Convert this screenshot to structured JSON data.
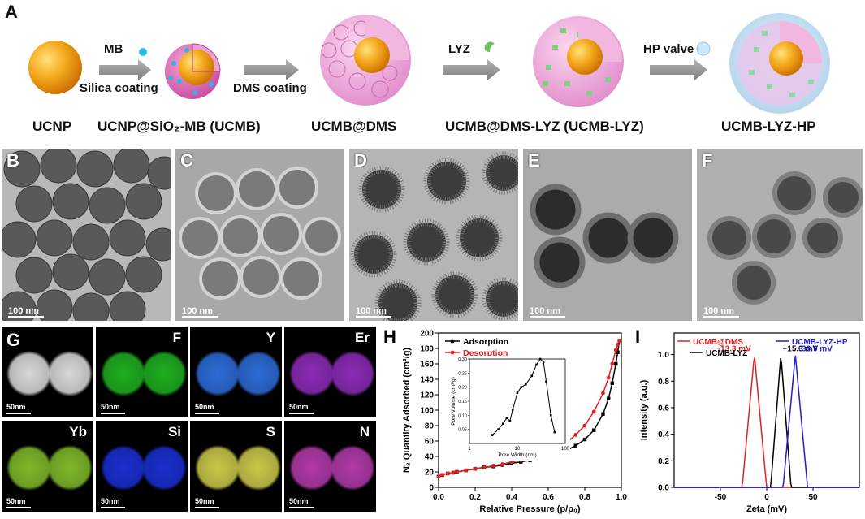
{
  "panels": {
    "A": "A",
    "B": "B",
    "C": "C",
    "D": "D",
    "E": "E",
    "F": "F",
    "G": "G",
    "H": "H",
    "I": "I"
  },
  "schematic": {
    "stages": [
      "UCNP",
      "UCNP@SiO₂-MB (UCMB)",
      "UCMB@DMS",
      "UCMB@DMS-LYZ (UCMB-LYZ)",
      "UCMB-LYZ-HP"
    ],
    "arrows": {
      "arrow1_top": "MB",
      "arrow1_bottom": "Silica coating",
      "arrow2_bottom": "DMS coating",
      "arrow3_top": "LYZ",
      "arrow4_top": "HP valve"
    }
  },
  "tem_scale": "100 nm",
  "eds": {
    "scale": "50nm",
    "maps": [
      {
        "label": "",
        "color": "#d8d8d8"
      },
      {
        "label": "F",
        "color": "#1fae1f"
      },
      {
        "label": "Y",
        "color": "#2c6bd6"
      },
      {
        "label": "Er",
        "color": "#8b2bb5"
      },
      {
        "label": "Yb",
        "color": "#7fb82a"
      },
      {
        "label": "Si",
        "color": "#1a2fd0"
      },
      {
        "label": "S",
        "color": "#c8c84a"
      },
      {
        "label": "N",
        "color": "#b03aa8"
      }
    ]
  },
  "chart_data": [
    {
      "type": "line",
      "panel": "H",
      "xlabel": "Relative Pressure (p/p₀)",
      "ylabel": "N₂ Quantity Adsorbed (cm³/g)",
      "xlim": [
        0.0,
        1.0
      ],
      "ylim": [
        0,
        200
      ],
      "xticks": [
        "0.0",
        "0.2",
        "0.4",
        "0.6",
        "0.8",
        "1.0"
      ],
      "yticks": [
        "0",
        "20",
        "40",
        "60",
        "80",
        "100",
        "120",
        "140",
        "160",
        "180",
        "200"
      ],
      "legend_position": "top-left",
      "series": [
        {
          "name": "Adsorption",
          "color": "#000000",
          "x": [
            0.0,
            0.02,
            0.05,
            0.08,
            0.1,
            0.15,
            0.2,
            0.25,
            0.3,
            0.35,
            0.4,
            0.45,
            0.5,
            0.55,
            0.6,
            0.65,
            0.7,
            0.75,
            0.8,
            0.85,
            0.9,
            0.93,
            0.95,
            0.97,
            0.98,
            0.99
          ],
          "y": [
            14,
            16,
            18,
            19,
            20,
            22,
            24,
            26,
            27,
            29,
            31,
            33,
            35,
            37,
            40,
            43,
            48,
            54,
            62,
            74,
            95,
            115,
            135,
            160,
            175,
            190
          ]
        },
        {
          "name": "Desorption",
          "color": "#e02020",
          "x": [
            0.99,
            0.98,
            0.97,
            0.95,
            0.93,
            0.9,
            0.85,
            0.8,
            0.75,
            0.7,
            0.65,
            0.6,
            0.55,
            0.5,
            0.45,
            0.4,
            0.35,
            0.3,
            0.25,
            0.2,
            0.15,
            0.1,
            0.08,
            0.05,
            0.02,
            0.0
          ],
          "y": [
            190,
            185,
            178,
            160,
            142,
            122,
            98,
            80,
            68,
            58,
            50,
            45,
            41,
            38,
            35,
            33,
            30,
            28,
            26,
            24,
            22,
            20,
            19,
            18,
            16,
            14
          ]
        }
      ],
      "inset": {
        "type": "line",
        "xlabel": "Pore Width (nm)",
        "ylabel": "Pore Volume (cm³/g)",
        "xscale": "log",
        "xlim": [
          1,
          100
        ],
        "ylim": [
          0.0,
          0.3
        ],
        "xticks": [
          "1",
          "10",
          "100"
        ],
        "yticks": [
          "0.05",
          "0.10",
          "0.15",
          "0.20",
          "0.25",
          "0.30"
        ],
        "x": [
          3,
          4,
          5,
          6,
          7,
          8,
          10,
          12,
          15,
          20,
          25,
          30,
          35,
          40,
          50,
          60
        ],
        "y": [
          0.03,
          0.05,
          0.07,
          0.09,
          0.08,
          0.12,
          0.18,
          0.2,
          0.21,
          0.24,
          0.28,
          0.3,
          0.29,
          0.22,
          0.1,
          0.04
        ]
      }
    },
    {
      "type": "line",
      "panel": "I",
      "xlabel": "Zeta (mV)",
      "ylabel": "Intensity (a.u.)",
      "xlim": [
        -100,
        100
      ],
      "ylim": [
        0.0,
        1.0
      ],
      "xticks": [
        "-50",
        "0",
        "50"
      ],
      "yticks": [
        "0.0",
        "0.2",
        "0.4",
        "0.6",
        "0.8",
        "1.0"
      ],
      "legend_position": "top",
      "series": [
        {
          "name": "UCMB@DMS",
          "color": "#e02020",
          "peak": -13.3,
          "width": 6,
          "annotation": "-13.3 mV"
        },
        {
          "name": "UCMB-LYZ",
          "color": "#000000",
          "peak": 15.3,
          "width": 5,
          "annotation": "+15.3 mV"
        },
        {
          "name": "UCMB-LYZ-HP",
          "color": "#1f1fc8",
          "peak": 30.9,
          "width": 6,
          "annotation": "+30.9 mV"
        }
      ]
    }
  ]
}
